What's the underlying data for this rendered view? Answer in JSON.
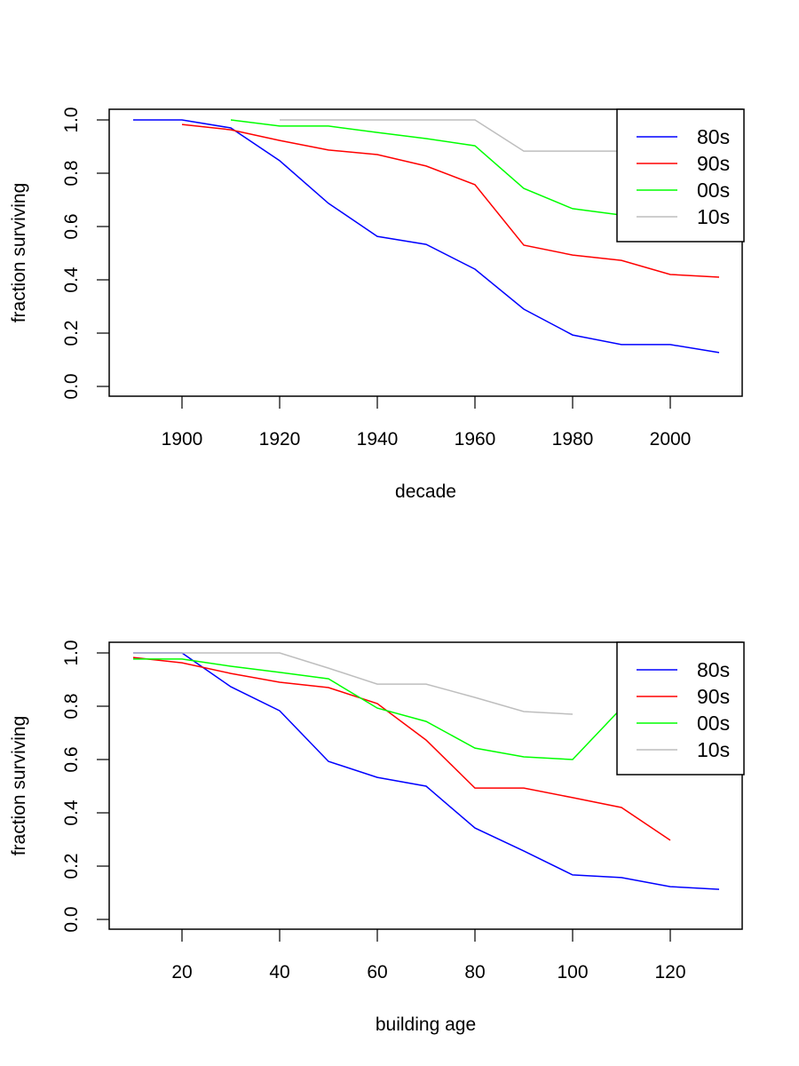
{
  "chart_data": [
    {
      "type": "line",
      "title": "",
      "xlabel": "decade",
      "ylabel": "fraction surviving",
      "xlim": [
        1885,
        2015
      ],
      "ylim": [
        0,
        1.0
      ],
      "xticks": [
        1900,
        1920,
        1940,
        1960,
        1980,
        2000
      ],
      "xtick_labels": [
        "1900",
        "1920",
        "1940",
        "1960",
        "1980",
        "2000"
      ],
      "yticks": [
        0.0,
        0.2,
        0.4,
        0.6,
        0.8,
        1.0
      ],
      "ytick_labels": [
        "0.0",
        "0.2",
        "0.4",
        "0.6",
        "0.8",
        "1.0"
      ],
      "grid": false,
      "legend_position": "top-right",
      "series": [
        {
          "name": "80s",
          "color": "#0000ff",
          "x": [
            1890,
            1900,
            1910,
            1920,
            1930,
            1940,
            1950,
            1960,
            1970,
            1980,
            1990,
            2000,
            2010
          ],
          "values": [
            1.0,
            1.0,
            0.97,
            0.847,
            0.687,
            0.563,
            0.533,
            0.44,
            0.29,
            0.193,
            0.157,
            0.157,
            0.127
          ]
        },
        {
          "name": "90s",
          "color": "#ff0000",
          "x": [
            1900,
            1910,
            1920,
            1930,
            1940,
            1950,
            1960,
            1970,
            1980,
            1990,
            2000,
            2010
          ],
          "values": [
            0.983,
            0.963,
            0.923,
            0.887,
            0.87,
            0.827,
            0.757,
            0.53,
            0.493,
            0.473,
            0.42,
            0.41
          ]
        },
        {
          "name": "00s",
          "color": "#00ff00",
          "x": [
            1910,
            1920,
            1930,
            1940,
            1950,
            1960,
            1970,
            1980,
            1990
          ],
          "values": [
            1.0,
            0.977,
            0.977,
            0.953,
            0.93,
            0.903,
            0.743,
            0.667,
            0.643
          ]
        },
        {
          "name": "10s",
          "color": "#bebebe",
          "x": [
            1920,
            1930,
            1940,
            1950,
            1960,
            1970,
            1980,
            1990
          ],
          "values": [
            1.0,
            1.0,
            1.0,
            1.0,
            1.0,
            0.883,
            0.883,
            0.883
          ]
        }
      ]
    },
    {
      "type": "line",
      "title": "",
      "xlabel": "building age",
      "ylabel": "fraction surviving",
      "xlim": [
        5,
        135
      ],
      "ylim": [
        0,
        1.0
      ],
      "xticks": [
        20,
        40,
        60,
        80,
        100,
        120
      ],
      "xtick_labels": [
        "20",
        "40",
        "60",
        "80",
        "100",
        "120"
      ],
      "yticks": [
        0.0,
        0.2,
        0.4,
        0.6,
        0.8,
        1.0
      ],
      "ytick_labels": [
        "0.0",
        "0.2",
        "0.4",
        "0.6",
        "0.8",
        "1.0"
      ],
      "grid": false,
      "legend_position": "top-right",
      "series": [
        {
          "name": "80s",
          "color": "#0000ff",
          "x": [
            10,
            20,
            30,
            40,
            50,
            60,
            70,
            80,
            90,
            100,
            110,
            120,
            130
          ],
          "values": [
            1.0,
            1.0,
            0.873,
            0.783,
            0.593,
            0.533,
            0.5,
            0.343,
            0.257,
            0.167,
            0.157,
            0.123,
            0.113
          ]
        },
        {
          "name": "90s",
          "color": "#ff0000",
          "x": [
            10,
            20,
            30,
            40,
            50,
            60,
            70,
            80,
            90,
            100,
            110,
            120
          ],
          "values": [
            0.983,
            0.963,
            0.923,
            0.89,
            0.87,
            0.81,
            0.673,
            0.493,
            0.493,
            0.457,
            0.42,
            0.297
          ]
        },
        {
          "name": "00s",
          "color": "#00ff00",
          "x": [
            10,
            20,
            30,
            40,
            50,
            60,
            70,
            80,
            90,
            100,
            110
          ],
          "values": [
            0.977,
            0.977,
            0.95,
            0.927,
            0.903,
            0.793,
            0.743,
            0.643,
            0.61,
            0.6,
            0.793
          ]
        },
        {
          "name": "10s",
          "color": "#bebebe",
          "x": [
            10,
            20,
            30,
            40,
            50,
            60,
            70,
            80,
            90,
            100
          ],
          "values": [
            1.0,
            1.0,
            1.0,
            1.0,
            0.943,
            0.883,
            0.883,
            0.833,
            0.78,
            0.77
          ]
        }
      ]
    }
  ]
}
